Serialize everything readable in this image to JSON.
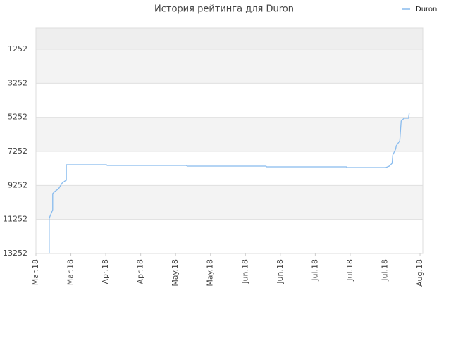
{
  "chart_data": {
    "type": "line",
    "title": "История рейтинга для Duron",
    "x": [
      0.38,
      0.38,
      0.48,
      0.48,
      0.54,
      0.65,
      0.75,
      0.83,
      0.87,
      0.87,
      2.02,
      2.04,
      4.31,
      4.33,
      6.59,
      6.61,
      8.89,
      8.91,
      10.02,
      10.12,
      10.2,
      10.22,
      10.3,
      10.32,
      10.42,
      10.44,
      10.46,
      10.54,
      10.67,
      10.69
    ],
    "series": [
      {
        "name": "Duron",
        "color": "#88bbee",
        "values": [
          13252,
          11184,
          10687,
          9735,
          9611,
          9446,
          9115,
          8990,
          8949,
          8038,
          8038,
          8080,
          8080,
          8121,
          8121,
          8163,
          8163,
          8204,
          8204,
          8121,
          7956,
          7459,
          7128,
          6921,
          6632,
          6052,
          5473,
          5307,
          5307,
          5018
        ]
      }
    ],
    "xlim": [
      0,
      11.08
    ],
    "xticks": [
      {
        "value": 0,
        "label": "Mar.18"
      },
      {
        "value": 1,
        "label": "Mar.18"
      },
      {
        "value": 2,
        "label": "Apr.18"
      },
      {
        "value": 3,
        "label": "Apr.18"
      },
      {
        "value": 4,
        "label": "May.18"
      },
      {
        "value": 5,
        "label": "May.18"
      },
      {
        "value": 6,
        "label": "Jun.18"
      },
      {
        "value": 7,
        "label": "Jun.18"
      },
      {
        "value": 8,
        "label": "Jul.18"
      },
      {
        "value": 9,
        "label": "Jul.18"
      },
      {
        "value": 10,
        "label": "Jul.18"
      },
      {
        "value": 11,
        "label": "Aug.18"
      }
    ],
    "ylim": [
      13252,
      10
    ],
    "yticks": [
      1252,
      3252,
      5252,
      7252,
      9252,
      11252,
      13252
    ],
    "grid": true,
    "legend": "top-right"
  }
}
